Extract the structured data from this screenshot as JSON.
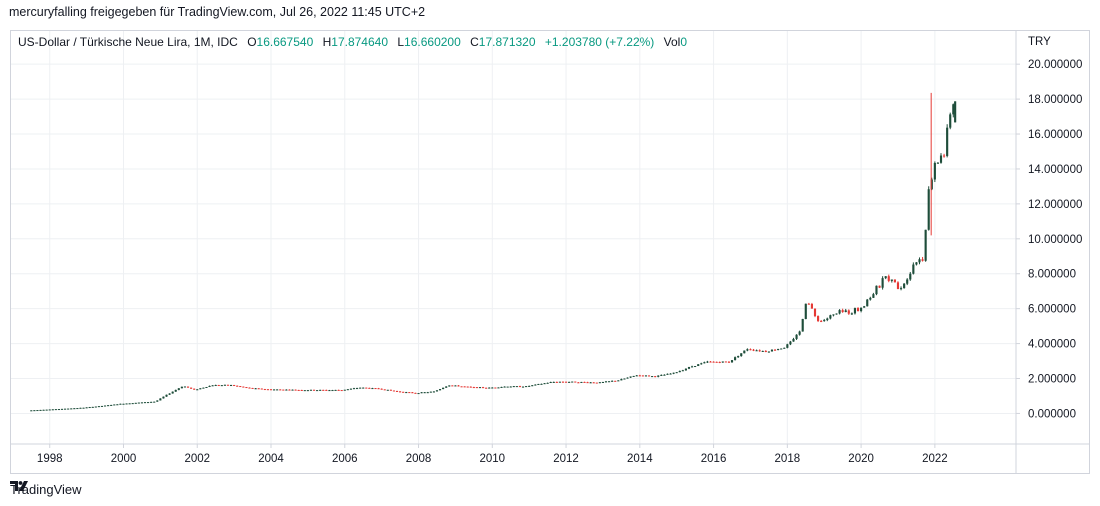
{
  "header": {
    "byline": "mercuryfalling freigegeben für TradingView.com, Jul 26, 2022 11:45 UTC+2"
  },
  "legend": {
    "symbol": "US-Dollar / Türkische Neue Lira, 1M, IDC",
    "open_label": "O",
    "open": "16.667540",
    "high_label": "H",
    "high": "17.874640",
    "low_label": "L",
    "low": "16.660200",
    "close_label": "C",
    "close": "17.871320",
    "change": "+1.203780 (+7.22%)",
    "vol_label": "Vol",
    "vol": "0"
  },
  "footer": {
    "brand": "TradingView"
  },
  "colors": {
    "up": "#26a69a",
    "down": "#ef5350",
    "up_candle": "#1e4d3a",
    "down_candle": "#e53935",
    "grid": "#eef0f3",
    "axis": "#d1d4dc",
    "legend_value": "#089981"
  },
  "chart_data": {
    "type": "candlestick",
    "currency_label": "TRY",
    "y_ticks": [
      "20.000000",
      "18.000000",
      "16.000000",
      "14.000000",
      "12.000000",
      "10.000000",
      "8.000000",
      "6.000000",
      "4.000000",
      "2.000000",
      "0.000000"
    ],
    "x_ticks": [
      "1998",
      "2000",
      "2002",
      "2004",
      "2006",
      "2008",
      "2010",
      "2012",
      "2014",
      "2016",
      "2018",
      "2020",
      "2022"
    ],
    "ylim": [
      -1.75,
      21.9
    ],
    "xlim": [
      1996.95,
      2024.2
    ],
    "anchors": [
      [
        1997.5,
        0.17
      ],
      [
        1998.0,
        0.22
      ],
      [
        1998.5,
        0.27
      ],
      [
        1999.0,
        0.33
      ],
      [
        1999.5,
        0.43
      ],
      [
        2000.0,
        0.55
      ],
      [
        2000.5,
        0.62
      ],
      [
        2000.95,
        0.68
      ],
      [
        2001.2,
        1.0
      ],
      [
        2001.7,
        1.58
      ],
      [
        2002.0,
        1.35
      ],
      [
        2002.5,
        1.62
      ],
      [
        2003.0,
        1.62
      ],
      [
        2003.5,
        1.45
      ],
      [
        2004.0,
        1.38
      ],
      [
        2005.0,
        1.34
      ],
      [
        2006.0,
        1.34
      ],
      [
        2006.5,
        1.48
      ],
      [
        2007.0,
        1.42
      ],
      [
        2007.5,
        1.26
      ],
      [
        2008.0,
        1.17
      ],
      [
        2008.5,
        1.25
      ],
      [
        2008.9,
        1.62
      ],
      [
        2009.5,
        1.5
      ],
      [
        2010.0,
        1.47
      ],
      [
        2010.5,
        1.55
      ],
      [
        2011.0,
        1.55
      ],
      [
        2011.7,
        1.8
      ],
      [
        2012.0,
        1.82
      ],
      [
        2012.5,
        1.79
      ],
      [
        2013.0,
        1.77
      ],
      [
        2013.5,
        1.9
      ],
      [
        2014.0,
        2.19
      ],
      [
        2014.5,
        2.12
      ],
      [
        2015.0,
        2.31
      ],
      [
        2015.5,
        2.7
      ],
      [
        2015.9,
        2.95
      ],
      [
        2016.5,
        2.95
      ],
      [
        2017.0,
        3.7
      ],
      [
        2017.5,
        3.55
      ],
      [
        2018.0,
        3.78
      ],
      [
        2018.4,
        4.5
      ],
      [
        2018.6,
        6.6
      ],
      [
        2018.8,
        5.6
      ],
      [
        2019.0,
        5.3
      ],
      [
        2019.5,
        5.75
      ],
      [
        2020.0,
        5.95
      ],
      [
        2020.4,
        6.85
      ],
      [
        2020.8,
        7.9
      ],
      [
        2020.95,
        7.4
      ],
      [
        2021.2,
        7.3
      ],
      [
        2021.5,
        8.6
      ],
      [
        2021.75,
        9.0
      ],
      [
        2021.85,
        10.5
      ],
      [
        2021.93,
        13.3
      ],
      [
        2022.0,
        13.5
      ],
      [
        2022.2,
        14.7
      ],
      [
        2022.35,
        14.9
      ],
      [
        2022.45,
        16.4
      ],
      [
        2022.55,
        17.87
      ]
    ],
    "spike": {
      "x": 2021.9,
      "low": 10.2,
      "high": 18.36
    },
    "last_candle": {
      "x": 2022.55,
      "open": 16.66754,
      "high": 17.87464,
      "low": 16.6602,
      "close": 17.87132
    }
  }
}
